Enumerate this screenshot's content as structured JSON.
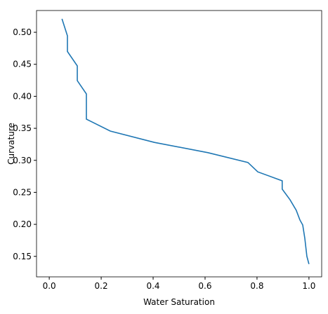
{
  "chart_data": {
    "type": "line",
    "x_label": "Water Saturation",
    "y_label": "Curvature",
    "color": "#1f77b4",
    "x": [
      0.049,
      0.07,
      0.07,
      0.108,
      0.108,
      0.143,
      0.143,
      0.235,
      0.405,
      0.611,
      0.765,
      0.803,
      0.897,
      0.897,
      0.927,
      0.951,
      0.965,
      0.976,
      0.984,
      0.992,
      1.0
    ],
    "values": [
      0.521,
      0.4945,
      0.47,
      0.4475,
      0.4245,
      0.4037,
      0.3643,
      0.3457,
      0.328,
      0.312,
      0.2966,
      0.282,
      0.268,
      0.255,
      0.2385,
      0.222,
      0.207,
      0.199,
      0.1784,
      0.15,
      0.138
    ],
    "xlim": [
      -0.049,
      1.049
    ],
    "ylim": [
      0.118,
      0.534
    ],
    "xticks": [
      {
        "value": 0,
        "label": "0.0"
      },
      0.2,
      0.4,
      0.6,
      0.8,
      {
        "value": 1,
        "label": "1.0"
      }
    ],
    "yticks": [
      0.15,
      {
        "value": 0.2,
        "label": "0.20"
      },
      0.25,
      {
        "value": 0.3,
        "label": "0.30"
      },
      0.35,
      {
        "value": 0.4,
        "label": "0.40"
      },
      0.45,
      {
        "value": 0.5,
        "label": "0.50"
      }
    ]
  }
}
